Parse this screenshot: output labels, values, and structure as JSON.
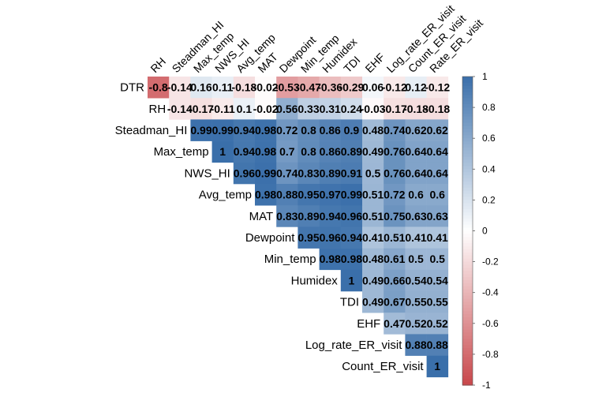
{
  "chart_data": {
    "type": "heatmap",
    "title": "",
    "rows": [
      "DTR",
      "RH",
      "Steadman_HI",
      "Max_temp",
      "NWS_HI",
      "Avg_temp",
      "MAT",
      "Dewpoint",
      "Min_temp",
      "Humidex",
      "TDI",
      "EHF",
      "Log_rate_ER_visit",
      "Count_ER_visit"
    ],
    "columns": [
      "RH",
      "Steadman_HI",
      "Max_temp",
      "NWS_HI",
      "Avg_temp",
      "MAT",
      "Dewpoint",
      "Min_temp",
      "Humidex",
      "TDI",
      "EHF",
      "Log_rate_ER_visit",
      "Count_ER_visit",
      "Rate_ER_visit"
    ],
    "value_labels": [
      [
        "-0.8",
        "-0.14",
        "0.16",
        "0.11",
        "-0.18",
        "-0.02",
        "-0.53",
        "-0.47",
        "-0.36",
        "-0.29",
        "0.06",
        "-0.12",
        "0.12",
        "-0.12"
      ],
      [
        "",
        "-0.14",
        "-0.17",
        "-0.11",
        "0.1",
        "-0.02",
        "0.56",
        "0.33",
        "0.31",
        "0.24",
        "-0.03",
        "-0.17",
        "-0.18",
        "-0.18"
      ],
      [
        "",
        "",
        "0.99",
        "0.99",
        "0.94",
        "0.98",
        "0.72",
        "0.8",
        "0.86",
        "0.9",
        "0.48",
        "0.74",
        "0.62",
        "0.62"
      ],
      [
        "",
        "",
        "",
        "1",
        "0.94",
        "0.98",
        "0.7",
        "0.8",
        "0.86",
        "0.89",
        "0.49",
        "0.76",
        "0.64",
        "0.64"
      ],
      [
        "",
        "",
        "",
        "",
        "0.96",
        "0.99",
        "0.74",
        "0.83",
        "0.89",
        "0.91",
        "0.5",
        "0.76",
        "0.64",
        "0.64"
      ],
      [
        "",
        "",
        "",
        "",
        "",
        "0.98",
        "0.88",
        "0.95",
        "0.97",
        "0.99",
        "0.51",
        "0.72",
        "0.6",
        "0.6"
      ],
      [
        "",
        "",
        "",
        "",
        "",
        "",
        "0.83",
        "0.89",
        "0.94",
        "0.96",
        "0.51",
        "0.75",
        "0.63",
        "0.63"
      ],
      [
        "",
        "",
        "",
        "",
        "",
        "",
        "",
        "0.95",
        "0.96",
        "0.94",
        "0.41",
        "0.51",
        "0.41",
        "0.41"
      ],
      [
        "",
        "",
        "",
        "",
        "",
        "",
        "",
        "",
        "0.98",
        "0.98",
        "0.48",
        "0.61",
        "0.5",
        "0.5"
      ],
      [
        "",
        "",
        "",
        "",
        "",
        "",
        "",
        "",
        "",
        "1",
        "0.49",
        "0.66",
        "0.54",
        "0.54"
      ],
      [
        "",
        "",
        "",
        "",
        "",
        "",
        "",
        "",
        "",
        "",
        "0.49",
        "0.67",
        "0.55",
        "0.55"
      ],
      [
        "",
        "",
        "",
        "",
        "",
        "",
        "",
        "",
        "",
        "",
        "",
        "0.47",
        "0.52",
        "0.52"
      ],
      [
        "",
        "",
        "",
        "",
        "",
        "",
        "",
        "",
        "",
        "",
        "",
        "",
        "0.88",
        "0.88"
      ],
      [
        "",
        "",
        "",
        "",
        "",
        "",
        "",
        "",
        "",
        "",
        "",
        "",
        "",
        "1"
      ]
    ],
    "colorbar": {
      "range": [
        -1,
        1
      ],
      "ticks": [
        "1",
        "0.8",
        "0.6",
        "0.4",
        "0.2",
        "0",
        "-0.2",
        "-0.4",
        "-0.6",
        "-0.8",
        "-1"
      ],
      "colors": {
        "negative": "#c8474b",
        "zero": "#ffffff",
        "positive": "#3a6faa"
      }
    },
    "grid": false
  }
}
